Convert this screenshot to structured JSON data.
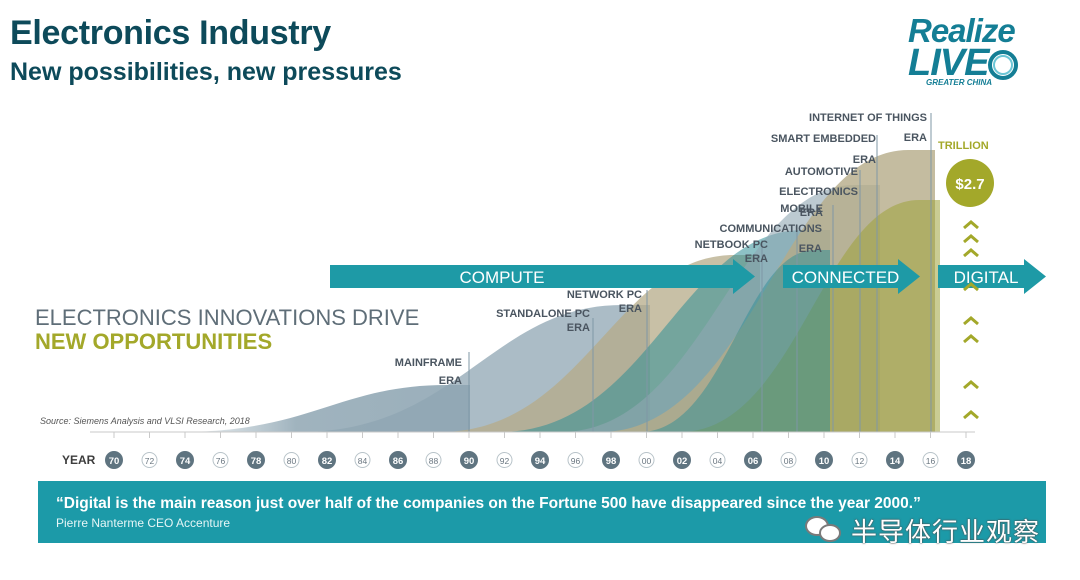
{
  "header": {
    "title": "Electronics Industry",
    "subtitle": "New possibilities, new pressures"
  },
  "logo": {
    "line1": "Realize",
    "line2": "LIVE",
    "line3": "GREATER CHINA"
  },
  "colors": {
    "title": "#0d4a5a",
    "arrow": "#1e9aa6",
    "olive": "#a3a82a",
    "waveGray": "#8fa6b3",
    "waveTeal": "#2f8e96",
    "waveKhaki": "#b5ab88",
    "waveOlive": "#9ea33a"
  },
  "chart_data": {
    "type": "area",
    "x_label": "YEAR",
    "x_ticks": [
      "70",
      "72",
      "74",
      "76",
      "78",
      "80",
      "82",
      "84",
      "86",
      "88",
      "90",
      "92",
      "94",
      "96",
      "98",
      "00",
      "02",
      "04",
      "06",
      "08",
      "10",
      "12",
      "14",
      "16",
      "18"
    ],
    "x_ticks_highlighted": [
      "70",
      "74",
      "78",
      "82",
      "86",
      "90",
      "94",
      "98",
      "02",
      "06",
      "10",
      "14",
      "18"
    ],
    "headline_line1": "ELECTRONICS INNOVATIONS DRIVE",
    "headline_line2": "NEW OPPORTUNITIES",
    "source": "Source: Siemens Analysis and VLSI Research, 2018",
    "phases": [
      {
        "label": "COMPUTE",
        "start_year": 1982,
        "end_year": 2007
      },
      {
        "label": "CONNECTED",
        "start_year": 2008,
        "end_year": 2014
      },
      {
        "label": "DIGITAL",
        "start_year": 2016,
        "end_year": 2020
      }
    ],
    "eras": [
      {
        "label": "MAINFRAME",
        "suffix": "ERA",
        "marker_year": 1990
      },
      {
        "label": "STANDALONE PC",
        "suffix": "ERA",
        "marker_year": 1997
      },
      {
        "label": "NETWORK PC",
        "suffix": "ERA",
        "marker_year": 2000
      },
      {
        "label": "NETBOOK PC",
        "suffix": "ERA",
        "marker_year": 2006.5
      },
      {
        "label": "COMMUNICATIONS",
        "suffix": "ERA",
        "marker_year": 2008.5
      },
      {
        "label": "MOBILE",
        "suffix": "ERA",
        "marker_year": 2010.5
      },
      {
        "label": "AUTOMOTIVE",
        "suffix": "ELECTRONICS",
        "marker_year": 2012
      },
      {
        "label": "SMART EMBEDDED",
        "suffix": "ERA",
        "marker_year": 2013
      },
      {
        "label": "INTERNET OF THINGS",
        "suffix": "ERA",
        "marker_year": 2016
      }
    ],
    "callout": {
      "value": "$2.7",
      "unit": "TRILLION"
    }
  },
  "quote": {
    "text": "“Digital is the main reason just over half of the companies on the Fortune 500 have disappeared since the year 2000.”",
    "author": "Pierre Nanterme CEO Accenture"
  },
  "watermark": {
    "text": "半导体行业观察",
    "icon": "wechat-icon"
  }
}
